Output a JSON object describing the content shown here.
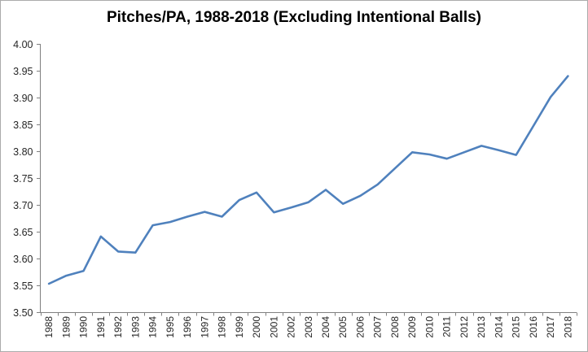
{
  "window": {
    "background_color": "#ffffff",
    "border_color": "#ababab"
  },
  "chart_data": {
    "type": "line",
    "title": "Pitches/PA, 1988-2018 (Excluding Intentional Balls)",
    "categories": [
      1988,
      1989,
      1990,
      1991,
      1992,
      1993,
      1994,
      1995,
      1996,
      1997,
      1998,
      1999,
      2000,
      2001,
      2002,
      2003,
      2004,
      2005,
      2006,
      2007,
      2008,
      2009,
      2010,
      2011,
      2012,
      2013,
      2014,
      2015,
      2016,
      2017,
      2018
    ],
    "values": [
      3.553,
      3.568,
      3.577,
      3.641,
      3.613,
      3.611,
      3.662,
      3.668,
      3.678,
      3.687,
      3.678,
      3.709,
      3.723,
      3.686,
      3.695,
      3.705,
      3.728,
      3.702,
      3.717,
      3.738,
      3.768,
      3.798,
      3.794,
      3.786,
      3.798,
      3.81,
      3.802,
      3.793,
      3.847,
      3.901,
      3.94
    ],
    "xlabel": "",
    "ylabel": "",
    "ylim": [
      3.5,
      4.0
    ],
    "ytick_values": [
      4.0,
      3.95,
      3.9,
      3.85,
      3.8,
      3.75,
      3.7,
      3.65,
      3.6,
      3.55,
      3.5
    ],
    "ytick_decimals": 2,
    "grid": false,
    "legend": false,
    "line_color": "#4F81BD",
    "axis_color": "#808080",
    "label_color": "#262626",
    "title_color": "#000000"
  }
}
